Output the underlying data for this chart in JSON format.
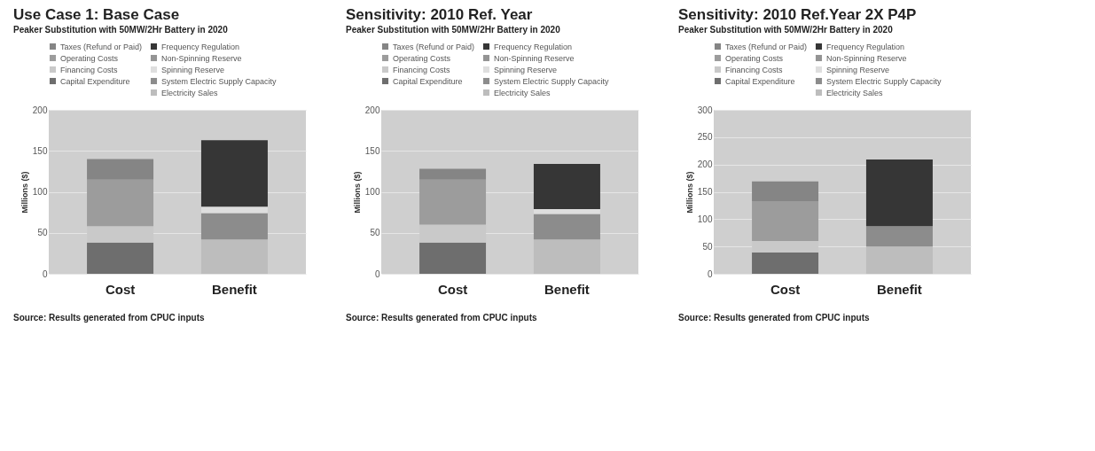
{
  "chart_data": [
    {
      "type": "bar",
      "title": "Use Case 1: Base Case",
      "subtitle": "Peaker Substitution with  50MW/2Hr Battery in 2020",
      "ylabel": "Millions ($)",
      "categories": [
        "Cost",
        "Benefit"
      ],
      "stacked": true,
      "ylim": [
        0,
        200
      ],
      "yticks": [
        0,
        50,
        100,
        150,
        200
      ],
      "grid": "y",
      "legend": "top",
      "annotations": [
        "Source: Results generated from CPUC inputs"
      ],
      "series": [
        {
          "name": "Capital Expenditure",
          "color": "#6e6e6e",
          "values": [
            38,
            null
          ]
        },
        {
          "name": "Financing Costs",
          "color": "#c9c9c9",
          "values": [
            20,
            null
          ]
        },
        {
          "name": "Operating Costs",
          "color": "#9c9c9c",
          "values": [
            57,
            null
          ]
        },
        {
          "name": "Taxes (Refund or Paid)",
          "color": "#858585",
          "values": [
            25,
            null
          ]
        },
        {
          "name": "Electricity Sales",
          "color": "#bdbdbd",
          "values": [
            null,
            42
          ]
        },
        {
          "name": "System Electric Supply Capacity",
          "color": "#8c8c8c",
          "values": [
            null,
            32
          ]
        },
        {
          "name": "Spinning Reserve",
          "color": "#dedede",
          "values": [
            null,
            8
          ]
        },
        {
          "name": "Non-Spinning Reserve",
          "color": "#949494",
          "values": [
            null,
            null
          ]
        },
        {
          "name": "Frequency Regulation",
          "color": "#363636",
          "values": [
            null,
            81
          ]
        }
      ]
    },
    {
      "type": "bar",
      "title": "Sensitivity: 2010 Ref. Year",
      "subtitle": "Peaker Substitution with  50MW/2Hr Battery in 2020",
      "ylabel": "Millions ($)",
      "categories": [
        "Cost",
        "Benefit"
      ],
      "stacked": true,
      "ylim": [
        0,
        200
      ],
      "yticks": [
        0,
        50,
        100,
        150,
        200
      ],
      "grid": "y",
      "legend": "top",
      "annotations": [
        "Source: Results generated from CPUC inputs"
      ],
      "series": [
        {
          "name": "Capital Expenditure",
          "color": "#6e6e6e",
          "values": [
            38,
            null
          ]
        },
        {
          "name": "Financing Costs",
          "color": "#c9c9c9",
          "values": [
            22,
            null
          ]
        },
        {
          "name": "Operating Costs",
          "color": "#9c9c9c",
          "values": [
            55,
            null
          ]
        },
        {
          "name": "Taxes (Refund or Paid)",
          "color": "#858585",
          "values": [
            13,
            null
          ]
        },
        {
          "name": "Electricity Sales",
          "color": "#bdbdbd",
          "values": [
            null,
            42
          ]
        },
        {
          "name": "System Electric Supply Capacity",
          "color": "#8c8c8c",
          "values": [
            null,
            31
          ]
        },
        {
          "name": "Spinning Reserve",
          "color": "#dedede",
          "values": [
            null,
            6
          ]
        },
        {
          "name": "Non-Spinning Reserve",
          "color": "#949494",
          "values": [
            null,
            null
          ]
        },
        {
          "name": "Frequency Regulation",
          "color": "#363636",
          "values": [
            null,
            55
          ]
        }
      ]
    },
    {
      "type": "bar",
      "title": "Sensitivity: 2010 Ref.Year 2X P4P",
      "subtitle": "Peaker Substitution with  50MW/2Hr Battery in 2020",
      "ylabel": "Millions ($)",
      "categories": [
        "Cost",
        "Benefit"
      ],
      "stacked": true,
      "ylim": [
        0,
        300
      ],
      "yticks": [
        0,
        50,
        100,
        150,
        200,
        250,
        300
      ],
      "grid": "y",
      "legend": "top",
      "annotations": [
        "Source: Results generated from CPUC inputs"
      ],
      "series": [
        {
          "name": "Capital Expenditure",
          "color": "#6e6e6e",
          "values": [
            39,
            null
          ]
        },
        {
          "name": "Financing Costs",
          "color": "#c9c9c9",
          "values": [
            21,
            null
          ]
        },
        {
          "name": "Operating Costs",
          "color": "#9c9c9c",
          "values": [
            73,
            null
          ]
        },
        {
          "name": "Taxes (Refund or Paid)",
          "color": "#858585",
          "values": [
            36,
            null
          ]
        },
        {
          "name": "Electricity Sales",
          "color": "#bdbdbd",
          "values": [
            null,
            50
          ]
        },
        {
          "name": "System Electric Supply Capacity",
          "color": "#8c8c8c",
          "values": [
            null,
            37
          ]
        },
        {
          "name": "Spinning Reserve",
          "color": "#dedede",
          "values": [
            null,
            null
          ]
        },
        {
          "name": "Non-Spinning Reserve",
          "color": "#949494",
          "values": [
            null,
            null
          ]
        },
        {
          "name": "Frequency Regulation",
          "color": "#363636",
          "values": [
            null,
            122
          ]
        }
      ]
    }
  ]
}
